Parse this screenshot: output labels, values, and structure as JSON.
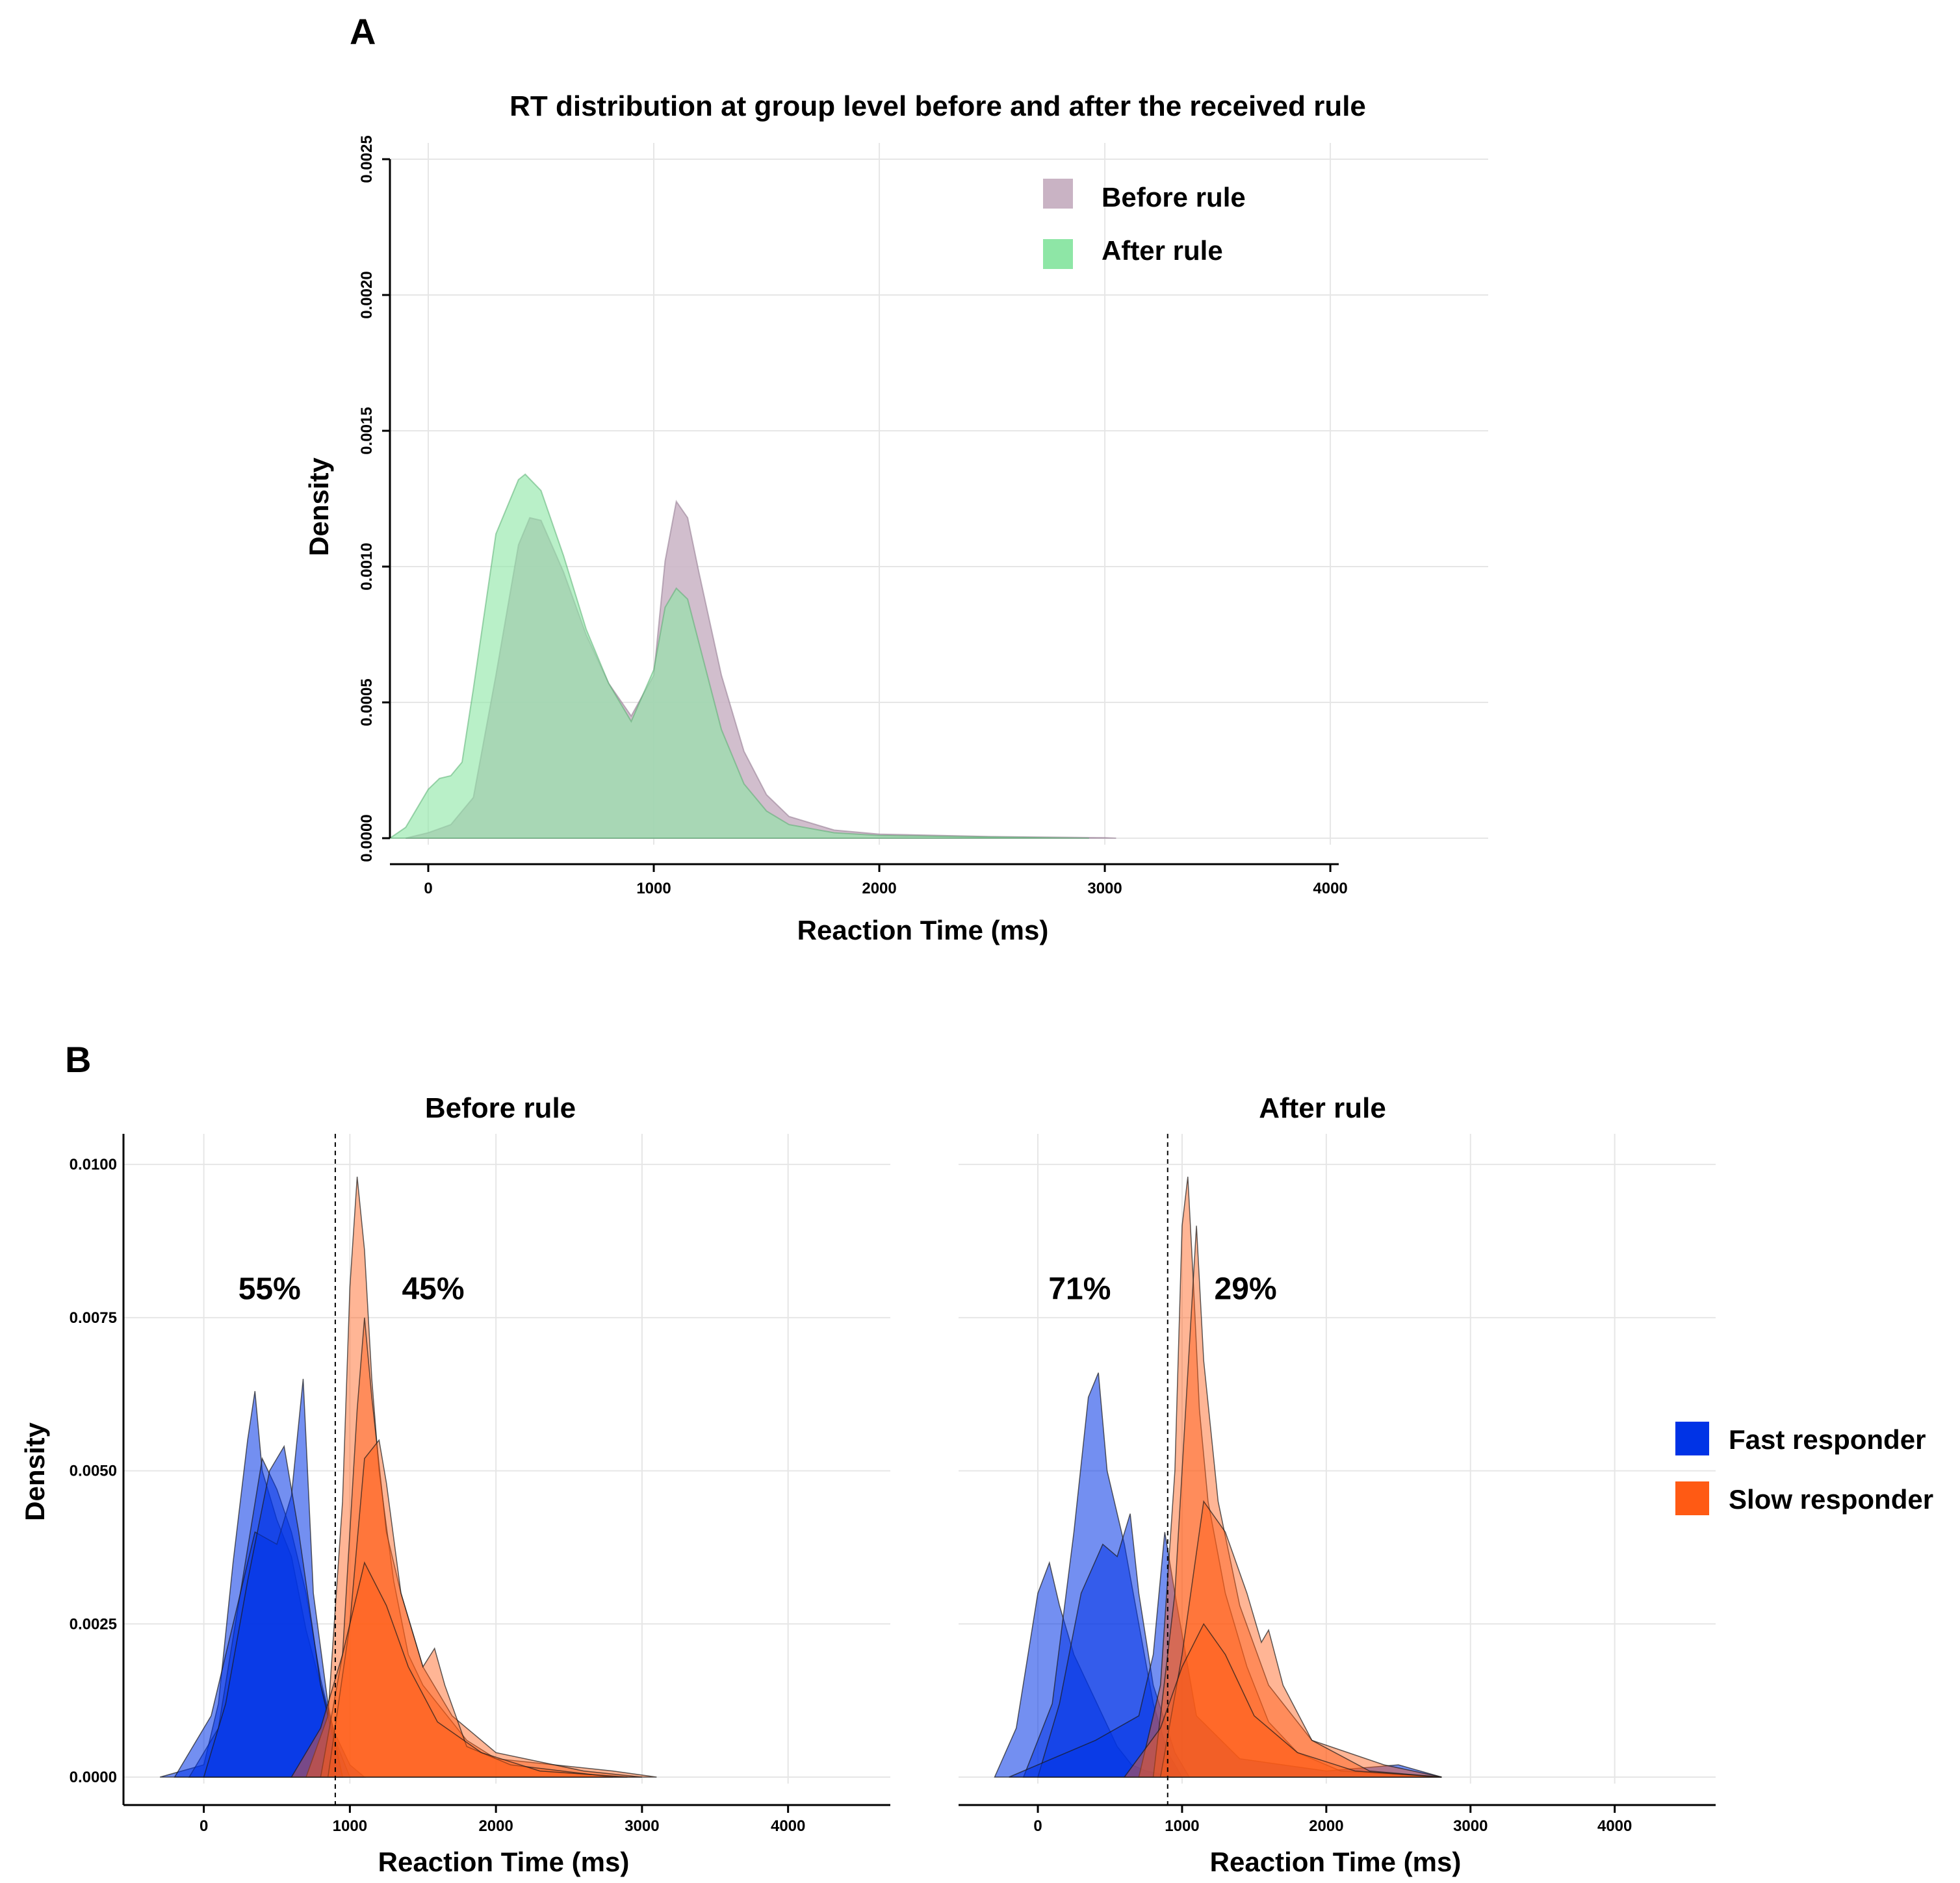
{
  "panel_labels": {
    "a": "A",
    "b": "B"
  },
  "colors": {
    "before": "#c9b3c4",
    "after": "#8ee6a6",
    "overlap": "#8fc49c",
    "fast": "#0033e6",
    "slow": "#ff5a14"
  },
  "chart_data": [
    {
      "id": "panel_a",
      "type": "area",
      "title": "RT distribution at group level before and after the received rule",
      "xlabel": "Reaction Time (ms)",
      "ylabel": "Density",
      "xlim": [
        -170,
        4700
      ],
      "ylim": [
        0,
        0.0025
      ],
      "xticks": [
        0,
        1000,
        2000,
        3000,
        4000
      ],
      "xtick_labels": [
        "0",
        "1000",
        "2000",
        "3000",
        "4000"
      ],
      "yticks": [
        0,
        0.0005,
        0.001,
        0.0015,
        0.002,
        0.0025
      ],
      "ytick_labels": [
        "0.0000",
        "0.0005",
        "0.0010",
        "0.0015",
        "0.0020",
        "0.0025"
      ],
      "legend": [
        {
          "label": "Before rule",
          "color": "#c9b3c4"
        },
        {
          "label": "After rule",
          "color": "#8ee6a6"
        }
      ],
      "series": [
        {
          "name": "Before rule",
          "x": [
            -100,
            0,
            100,
            200,
            300,
            400,
            450,
            500,
            600,
            700,
            800,
            900,
            1000,
            1050,
            1100,
            1150,
            1200,
            1300,
            1400,
            1500,
            1600,
            1800,
            2000,
            2500,
            3000,
            3050
          ],
          "y": [
            0,
            2e-05,
            5e-05,
            0.00015,
            0.0006,
            0.00108,
            0.00118,
            0.00117,
            0.00098,
            0.00075,
            0.00057,
            0.00045,
            0.0006,
            0.00102,
            0.00124,
            0.00118,
            0.00098,
            0.0006,
            0.00032,
            0.00016,
            8e-05,
            3e-05,
            1.5e-05,
            6e-06,
            2e-06,
            0
          ]
        },
        {
          "name": "After rule",
          "x": [
            -170,
            -100,
            0,
            50,
            100,
            150,
            200,
            300,
            400,
            430,
            500,
            600,
            700,
            800,
            900,
            1000,
            1050,
            1100,
            1150,
            1200,
            1300,
            1400,
            1500,
            1600,
            1800,
            2000,
            2500,
            2930
          ],
          "y": [
            0,
            4e-05,
            0.00018,
            0.00022,
            0.00023,
            0.00028,
            0.00055,
            0.00112,
            0.00132,
            0.00134,
            0.00128,
            0.00104,
            0.00077,
            0.00057,
            0.00043,
            0.00062,
            0.00085,
            0.00092,
            0.00088,
            0.00072,
            0.0004,
            0.0002,
            0.0001,
            5e-05,
            2e-05,
            1e-05,
            4e-06,
            0
          ]
        }
      ]
    },
    {
      "id": "panel_b_before",
      "type": "area",
      "title": "Before rule",
      "xlabel": "Reaction Time (ms)",
      "ylabel": "Density",
      "xlim": [
        -550,
        4700
      ],
      "ylim": [
        0,
        0.0105
      ],
      "xticks": [
        0,
        1000,
        2000,
        3000,
        4000
      ],
      "xtick_labels": [
        "0",
        "1000",
        "2000",
        "3000",
        "4000"
      ],
      "yticks": [
        0,
        0.0025,
        0.005,
        0.0075,
        0.01
      ],
      "ytick_labels": [
        "0.0000",
        "0.0025",
        "0.0050",
        "0.0075",
        "0.0100"
      ],
      "threshold_x": 900,
      "annotations": [
        {
          "text": "55%",
          "x": 450,
          "y": 0.0078
        },
        {
          "text": "45%",
          "x": 1570,
          "y": 0.0078
        }
      ],
      "series": [
        {
          "name": "Fast responder",
          "x": [
            -300,
            0,
            100,
            200,
            300,
            350,
            400,
            500,
            600,
            700,
            800,
            900,
            1000,
            1100
          ],
          "y": [
            0,
            0.0002,
            0.0012,
            0.0035,
            0.0055,
            0.0063,
            0.005,
            0.0042,
            0.0036,
            0.0024,
            0.0015,
            0.0007,
            0.0002,
            0
          ]
        },
        {
          "name": "Fast responder",
          "x": [
            -100,
            100,
            250,
            400,
            500,
            600,
            700,
            800,
            900,
            1000
          ],
          "y": [
            0,
            0.0008,
            0.003,
            0.0052,
            0.0047,
            0.004,
            0.003,
            0.0016,
            0.0006,
            0
          ]
        },
        {
          "name": "Fast responder",
          "x": [
            -200,
            50,
            200,
            350,
            500,
            600,
            680,
            750,
            850,
            950
          ],
          "y": [
            0,
            0.001,
            0.0025,
            0.004,
            0.0038,
            0.0046,
            0.0065,
            0.003,
            0.0012,
            0
          ]
        },
        {
          "name": "Fast responder",
          "x": [
            0,
            150,
            300,
            450,
            550,
            650,
            800,
            950
          ],
          "y": [
            0,
            0.0012,
            0.0032,
            0.005,
            0.0054,
            0.004,
            0.0015,
            0
          ]
        },
        {
          "name": "Slow responder",
          "x": [
            700,
            850,
            950,
            1000,
            1050,
            1100,
            1150,
            1200,
            1300,
            1400,
            1500,
            1600,
            1800,
            2000,
            2400,
            2800,
            3100
          ],
          "y": [
            0,
            0.001,
            0.0045,
            0.008,
            0.0098,
            0.0086,
            0.0065,
            0.005,
            0.0032,
            0.002,
            0.0015,
            0.0012,
            0.0006,
            0.0003,
            0.0002,
            0.0001,
            0
          ]
        },
        {
          "name": "Slow responder",
          "x": [
            800,
            950,
            1050,
            1100,
            1150,
            1250,
            1350,
            1500,
            1700,
            2000,
            2600,
            3000
          ],
          "y": [
            0,
            0.002,
            0.006,
            0.0075,
            0.0062,
            0.004,
            0.003,
            0.0018,
            0.001,
            0.0004,
            0.0001,
            0
          ]
        },
        {
          "name": "Slow responder",
          "x": [
            850,
            1000,
            1100,
            1200,
            1250,
            1350,
            1500,
            1580,
            1650,
            1800,
            2100,
            2800
          ],
          "y": [
            0,
            0.0025,
            0.0052,
            0.0055,
            0.0048,
            0.003,
            0.0018,
            0.0021,
            0.0015,
            0.0005,
            0.0002,
            0
          ]
        },
        {
          "name": "Slow responder",
          "x": [
            600,
            800,
            950,
            1100,
            1250,
            1400,
            1600,
            1900,
            2300,
            2900
          ],
          "y": [
            0,
            0.0008,
            0.002,
            0.0035,
            0.0028,
            0.0018,
            0.0009,
            0.0004,
            0.0001,
            0
          ]
        }
      ]
    },
    {
      "id": "panel_b_after",
      "type": "area",
      "title": "After rule",
      "xlabel": "Reaction Time (ms)",
      "ylabel": "",
      "xlim": [
        -550,
        4700
      ],
      "ylim": [
        0,
        0.0105
      ],
      "xticks": [
        0,
        1000,
        2000,
        3000,
        4000
      ],
      "xtick_labels": [
        "0",
        "1000",
        "2000",
        "3000",
        "4000"
      ],
      "threshold_x": 900,
      "annotations": [
        {
          "text": "71%",
          "x": 290,
          "y": 0.0078
        },
        {
          "text": "29%",
          "x": 1440,
          "y": 0.0078
        }
      ],
      "series": [
        {
          "name": "Fast responder",
          "x": [
            -300,
            -150,
            0,
            80,
            150,
            250,
            350,
            450,
            550,
            650,
            750,
            850,
            950
          ],
          "y": [
            0,
            0.0008,
            0.003,
            0.0035,
            0.0028,
            0.002,
            0.0015,
            0.001,
            0.0005,
            0.0002,
            0.0001,
            5e-05,
            0
          ]
        },
        {
          "name": "Fast responder",
          "x": [
            -100,
            100,
            250,
            350,
            420,
            480,
            600,
            700,
            800,
            900,
            1000
          ],
          "y": [
            0,
            0.0012,
            0.004,
            0.0062,
            0.0066,
            0.005,
            0.0038,
            0.0025,
            0.0012,
            0.0004,
            0
          ]
        },
        {
          "name": "Fast responder",
          "x": [
            0,
            150,
            300,
            450,
            550,
            640,
            700,
            800,
            950,
            1050
          ],
          "y": [
            0,
            0.0012,
            0.003,
            0.0038,
            0.0036,
            0.0043,
            0.003,
            0.0015,
            0.0004,
            0
          ]
        },
        {
          "name": "Fast responder",
          "x": [
            -200,
            100,
            400,
            700,
            800,
            880,
            950,
            1100,
            1400,
            2000,
            2500,
            2800
          ],
          "y": [
            0,
            0.0003,
            0.0006,
            0.001,
            0.002,
            0.004,
            0.003,
            0.001,
            0.0003,
            0.0001,
            0.0002,
            0
          ]
        },
        {
          "name": "Slow responder",
          "x": [
            700,
            850,
            950,
            1000,
            1040,
            1080,
            1120,
            1180,
            1300,
            1450,
            1600,
            1800,
            2100,
            2800
          ],
          "y": [
            0,
            0.0015,
            0.005,
            0.009,
            0.0098,
            0.008,
            0.006,
            0.0045,
            0.003,
            0.0018,
            0.0009,
            0.0004,
            0.0001,
            0
          ]
        },
        {
          "name": "Slow responder",
          "x": [
            800,
            950,
            1050,
            1100,
            1150,
            1250,
            1400,
            1600,
            1900,
            2400,
            2800
          ],
          "y": [
            0,
            0.003,
            0.007,
            0.009,
            0.0068,
            0.0045,
            0.0028,
            0.0015,
            0.0006,
            0.0002,
            0
          ]
        },
        {
          "name": "Slow responder",
          "x": [
            850,
            1000,
            1150,
            1300,
            1450,
            1550,
            1600,
            1700,
            1900,
            2300,
            2800
          ],
          "y": [
            0,
            0.002,
            0.0045,
            0.004,
            0.003,
            0.0022,
            0.0024,
            0.0015,
            0.0006,
            0.0001,
            0
          ]
        },
        {
          "name": "Slow responder",
          "x": [
            600,
            850,
            1000,
            1150,
            1300,
            1500,
            1800,
            2200,
            2800
          ],
          "y": [
            0,
            0.0008,
            0.0018,
            0.0025,
            0.002,
            0.001,
            0.0004,
            0.0001,
            0
          ]
        }
      ]
    }
  ],
  "legend_b": [
    {
      "label": "Fast responder",
      "color": "#0033e6"
    },
    {
      "label": "Slow responder",
      "color": "#ff5a14"
    }
  ]
}
